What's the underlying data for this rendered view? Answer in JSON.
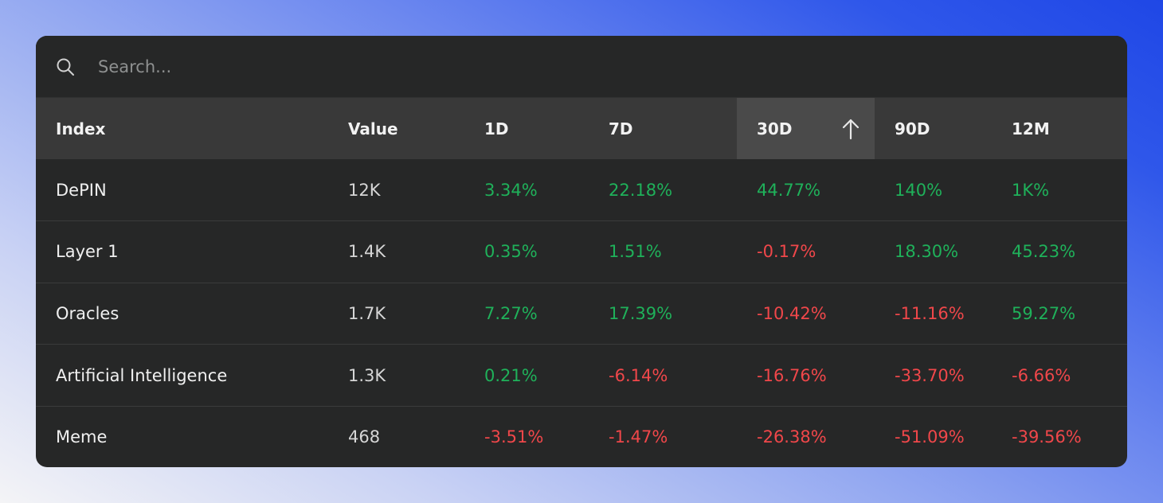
{
  "search": {
    "placeholder": "Search..."
  },
  "table": {
    "headers": {
      "index": "Index",
      "value": "Value",
      "d1": "1D",
      "d7": "7D",
      "d30": "30D",
      "d90": "90D",
      "m12": "12M"
    },
    "sorted_column": "30D",
    "sort_direction": "ascending",
    "rows": [
      {
        "name": "DePIN",
        "value": "12K",
        "d1": "3.34%",
        "d7": "22.18%",
        "d30": "44.77%",
        "d90": "140%",
        "m12": "1K%"
      },
      {
        "name": "Layer 1",
        "value": "1.4K",
        "d1": "0.35%",
        "d7": "1.51%",
        "d30": "-0.17%",
        "d90": "18.30%",
        "m12": "45.23%"
      },
      {
        "name": "Oracles",
        "value": "1.7K",
        "d1": "7.27%",
        "d7": "17.39%",
        "d30": "-10.42%",
        "d90": "-11.16%",
        "m12": "59.27%"
      },
      {
        "name": "Artificial Intelligence",
        "value": "1.3K",
        "d1": "0.21%",
        "d7": "-6.14%",
        "d30": "-16.76%",
        "d90": "-33.70%",
        "m12": "-6.66%"
      },
      {
        "name": "Meme",
        "value": "468",
        "d1": "-3.51%",
        "d7": "-1.47%",
        "d30": "-26.38%",
        "d90": "-51.09%",
        "m12": "-39.56%"
      }
    ]
  },
  "colors": {
    "positive": "#1fb15a",
    "negative": "#f0474a",
    "card_background": "#262727",
    "header_background": "#393939",
    "active_header_background": "#4a4a4a"
  }
}
